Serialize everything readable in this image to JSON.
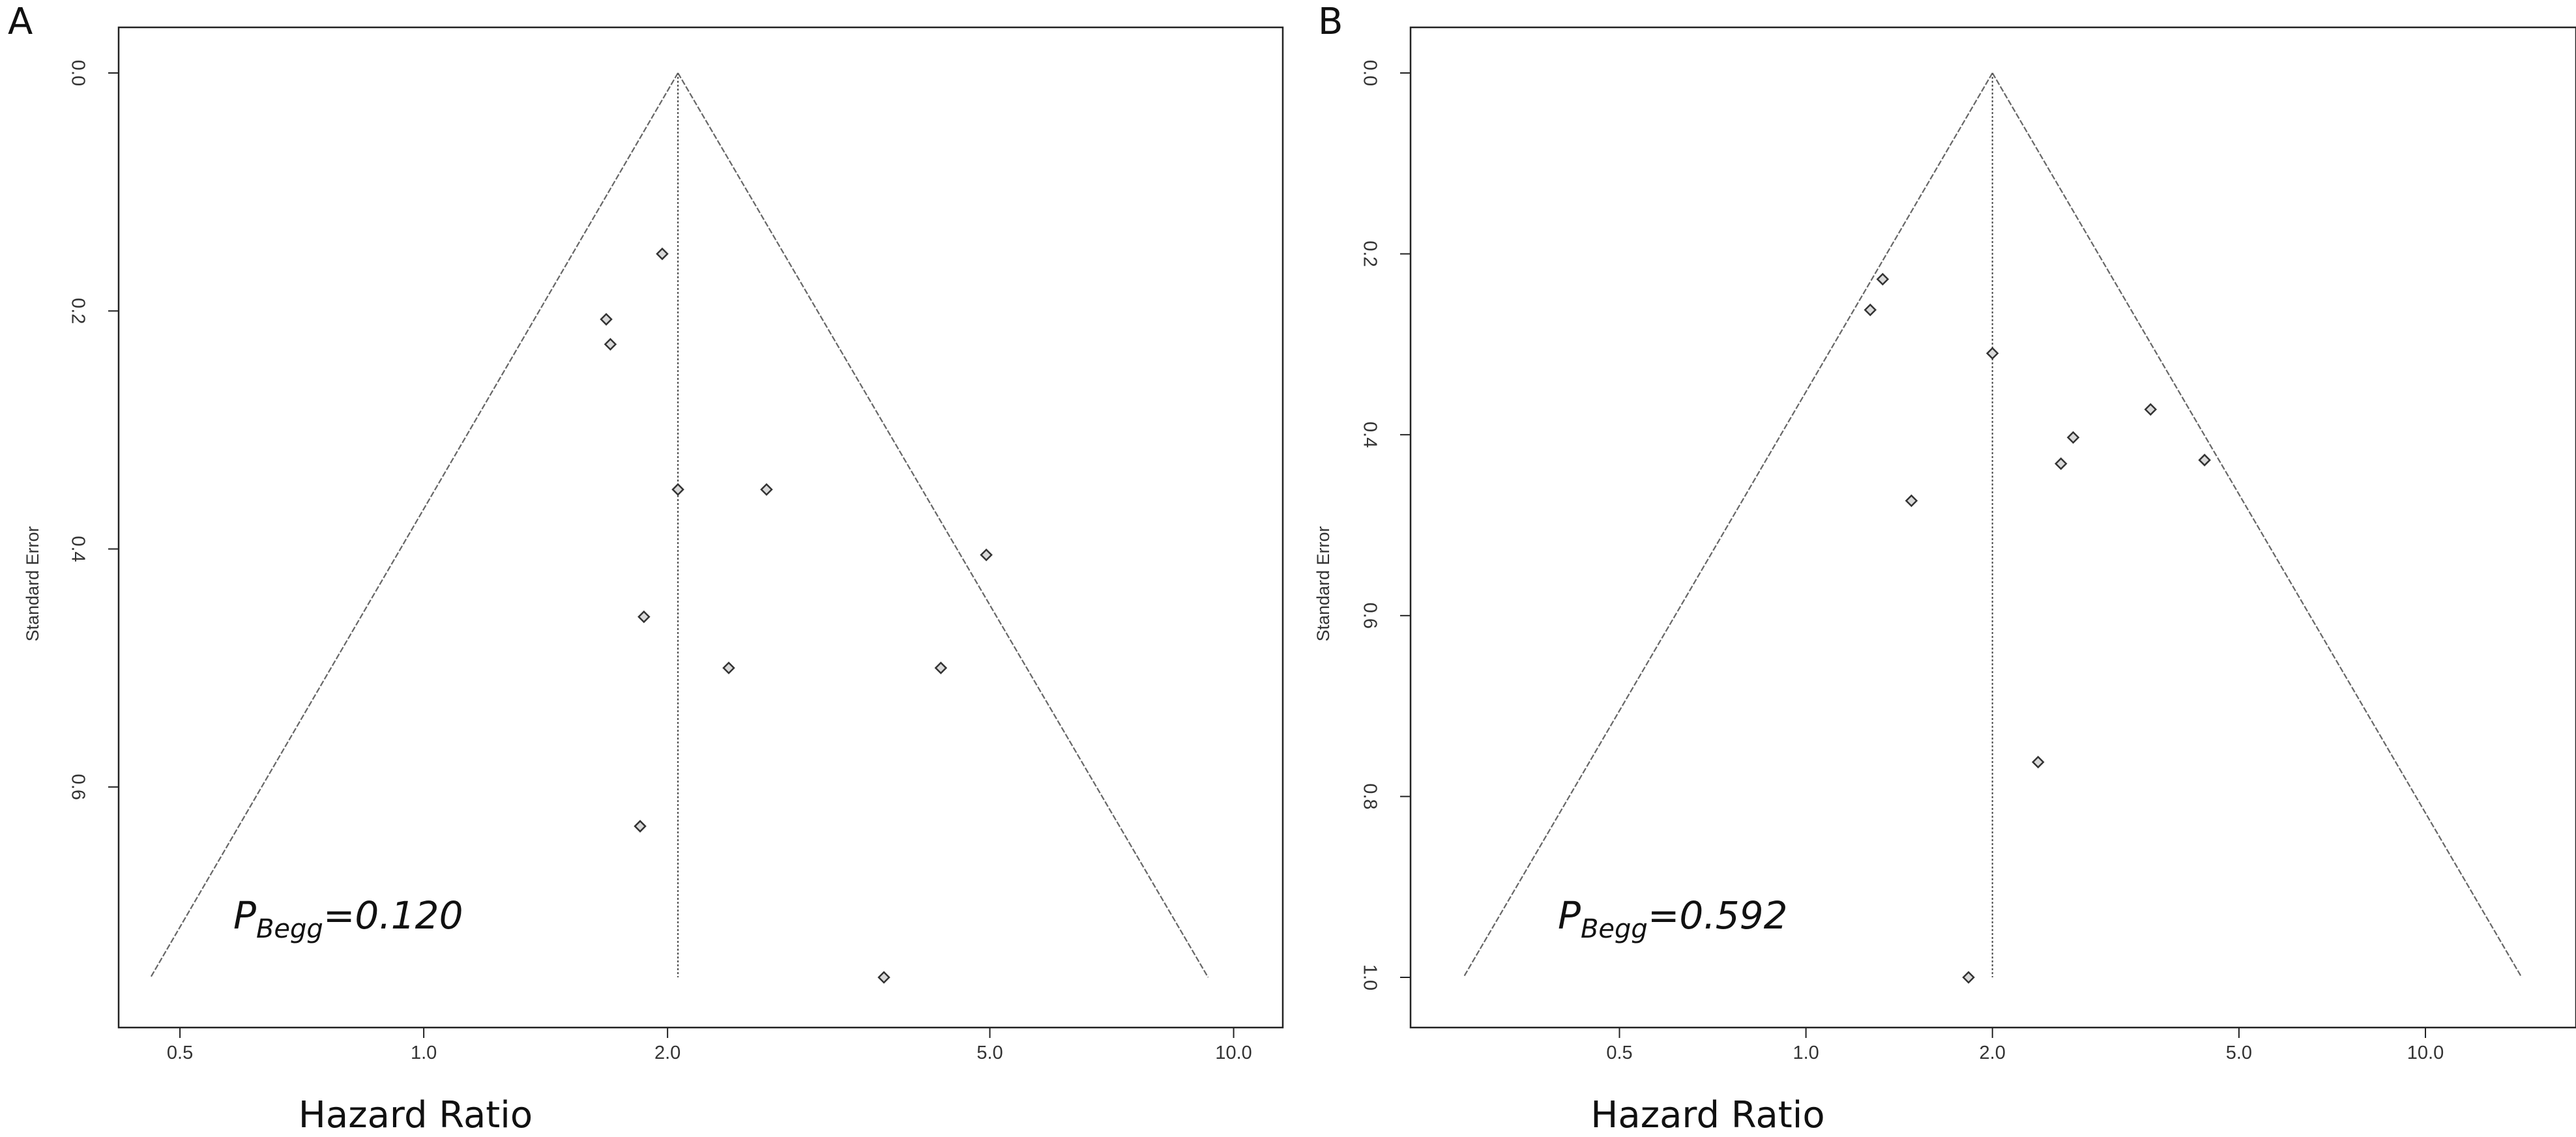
{
  "chart_data": [
    {
      "type": "scatter",
      "panel_label": "A",
      "xlabel": "Hazard Ratio",
      "ylabel": "Standard Error",
      "x_scale": "log",
      "xlim": [
        0.42,
        11.5
      ],
      "ylim": [
        0,
        0.76
      ],
      "x_ticks": [
        0.5,
        1.0,
        2.0,
        5.0,
        10.0
      ],
      "x_tick_labels": [
        "0.5",
        "1.0",
        "2.0",
        "5.0",
        "10.0"
      ],
      "y_ticks": [
        0.0,
        0.2,
        0.4,
        0.6
      ],
      "y_tick_labels": [
        "0.0",
        "0.2",
        "0.4",
        "0.6"
      ],
      "pooled_estimate": 2.06,
      "funnel": {
        "apex_se": 0.0,
        "base_se": 0.76,
        "base_left": 0.46,
        "base_right": 9.3
      },
      "annotation": {
        "main": "P",
        "sub": "Begg",
        "value": "=0.120"
      },
      "points": [
        {
          "hr": 1.97,
          "se": 0.152
        },
        {
          "hr": 1.68,
          "se": 0.207
        },
        {
          "hr": 1.7,
          "se": 0.228
        },
        {
          "hr": 2.06,
          "se": 0.35
        },
        {
          "hr": 2.65,
          "se": 0.35
        },
        {
          "hr": 4.95,
          "se": 0.405
        },
        {
          "hr": 1.87,
          "se": 0.457
        },
        {
          "hr": 2.38,
          "se": 0.5
        },
        {
          "hr": 4.35,
          "se": 0.5
        },
        {
          "hr": 1.85,
          "se": 0.633
        },
        {
          "hr": 3.7,
          "se": 0.76
        }
      ]
    },
    {
      "type": "scatter",
      "panel_label": "B",
      "xlabel": "Hazard Ratio",
      "ylabel": "Standard Error",
      "x_scale": "log",
      "xlim": [
        0.23,
        17.5
      ],
      "ylim": [
        0,
        1.0
      ],
      "x_ticks": [
        0.5,
        1.0,
        2.0,
        5.0,
        10.0
      ],
      "x_tick_labels": [
        "0.5",
        "1.0",
        "2.0",
        "5.0",
        "10.0"
      ],
      "y_ticks": [
        0.0,
        0.2,
        0.4,
        0.6,
        0.8,
        1.0
      ],
      "y_tick_labels": [
        "0.0",
        "0.2",
        "0.4",
        "0.6",
        "0.8",
        "1.0"
      ],
      "pooled_estimate": 2.0,
      "funnel": {
        "apex_se": 0.0,
        "base_se": 1.0,
        "base_left": 0.28,
        "base_right": 14.3
      },
      "annotation": {
        "main": "P",
        "sub": "Begg",
        "value": "=0.592"
      },
      "points": [
        {
          "hr": 1.33,
          "se": 0.228
        },
        {
          "hr": 1.27,
          "se": 0.262
        },
        {
          "hr": 2.0,
          "se": 0.31
        },
        {
          "hr": 3.6,
          "se": 0.372
        },
        {
          "hr": 2.7,
          "se": 0.403
        },
        {
          "hr": 2.58,
          "se": 0.432
        },
        {
          "hr": 4.4,
          "se": 0.428
        },
        {
          "hr": 1.48,
          "se": 0.473
        },
        {
          "hr": 2.37,
          "se": 0.762
        },
        {
          "hr": 1.83,
          "se": 1.0
        }
      ]
    }
  ]
}
